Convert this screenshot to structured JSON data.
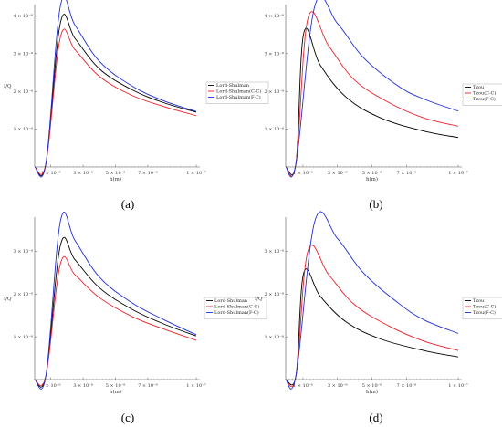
{
  "chart_data": [
    {
      "type": "line",
      "caption": "(a)",
      "xlabel": "h(m)",
      "ylabel": "I/Q",
      "xlim": [
        0,
        1e-07
      ],
      "ylim": [
        0,
        4.3e-08
      ],
      "x_ticks": [
        1e-08,
        3e-08,
        5e-08,
        7e-08,
        1e-07
      ],
      "x_tick_labels": [
        "1 × 10⁻⁸",
        "3 × 10⁻⁸",
        "5 × 10⁻⁸",
        "7 × 10⁻⁸",
        "1 × 10⁻⁷"
      ],
      "y_ticks": [
        1e-08,
        2e-08,
        3e-08,
        4e-08
      ],
      "y_tick_labels": [
        "1 × 10⁻⁸",
        "2 × 10⁻⁸",
        "3 × 10⁻⁸",
        "4 × 10⁻⁸"
      ],
      "legend_position": "right",
      "series": [
        {
          "name": "Lord-Shulman",
          "color": "#000000",
          "x": [
            0,
            7e-09,
            1.6e-08,
            2.5e-08,
            4e-08,
            6e-08,
            8e-08,
            1e-07
          ],
          "y": [
            0,
            1e-09,
            3.83e-08,
            3.4e-08,
            2.6e-08,
            2.05e-08,
            1.7e-08,
            1.45e-08
          ]
        },
        {
          "name": "Lord-Shulman(C-C)",
          "color": "#e8212a",
          "x": [
            0,
            7e-09,
            1.6e-08,
            2.5e-08,
            4e-08,
            6e-08,
            8e-08,
            1e-07
          ],
          "y": [
            0,
            1e-09,
            3.45e-08,
            3.1e-08,
            2.4e-08,
            1.9e-08,
            1.6e-08,
            1.36e-08
          ]
        },
        {
          "name": "Lord-Shulman(F-C)",
          "color": "#1f2fd6",
          "x": [
            0,
            7e-09,
            1.6e-08,
            2.5e-08,
            4e-08,
            6e-08,
            8e-08,
            1e-07
          ],
          "y": [
            0,
            1e-09,
            4.28e-08,
            3.75e-08,
            2.8e-08,
            2.15e-08,
            1.75e-08,
            1.47e-08
          ]
        }
      ]
    },
    {
      "type": "line",
      "caption": "(b)",
      "xlabel": "h(m)",
      "ylabel": "",
      "xlim": [
        0,
        1e-07
      ],
      "ylim": [
        0,
        4.3e-08
      ],
      "x_ticks": [
        1e-08,
        3e-08,
        5e-08,
        7e-08,
        1e-07
      ],
      "x_tick_labels": [
        "1 × 10⁻⁸",
        "3 × 10⁻⁸",
        "5 × 10⁻⁸",
        "7 × 10⁻⁸",
        "1 × 10⁻⁷"
      ],
      "y_ticks": [
        1e-08,
        2e-08,
        3e-08,
        4e-08
      ],
      "y_tick_labels": [
        "1 × 10⁻⁸",
        "2 × 10⁻⁸",
        "3 × 10⁻⁸",
        "4 × 10⁻⁸"
      ],
      "legend_position": "right",
      "series": [
        {
          "name": "Tzou",
          "color": "#000000",
          "x": [
            0,
            6e-09,
            1.05e-08,
            2e-08,
            3.5e-08,
            5.5e-08,
            8e-08,
            1e-07
          ],
          "y": [
            0,
            1e-09,
            3.55e-08,
            2.7e-08,
            1.85e-08,
            1.3e-08,
            9.5e-09,
            7.8e-09
          ]
        },
        {
          "name": "Tzou(C-C)",
          "color": "#e8212a",
          "x": [
            0,
            6e-09,
            1.3e-08,
            2.5e-08,
            4e-08,
            6e-08,
            8e-08,
            1e-07
          ],
          "y": [
            0,
            1e-09,
            3.95e-08,
            3.2e-08,
            2.3e-08,
            1.7e-08,
            1.3e-08,
            1.08e-08
          ]
        },
        {
          "name": "Tzou(F-C)",
          "color": "#1f2fd6",
          "x": [
            0,
            6e-09,
            1.7e-08,
            3e-08,
            4.5e-08,
            6.5e-08,
            8e-08,
            1e-07
          ],
          "y": [
            0,
            1e-09,
            4.28e-08,
            3.8e-08,
            2.9e-08,
            2.15e-08,
            1.8e-08,
            1.48e-08
          ]
        }
      ]
    },
    {
      "type": "line",
      "caption": "(c)",
      "xlabel": "h(m)",
      "ylabel": "I/Q",
      "xlim": [
        0,
        1e-07
      ],
      "ylim": [
        0,
        3.8e-08
      ],
      "x_ticks": [
        1e-08,
        3e-08,
        5e-08,
        7e-08,
        1e-07
      ],
      "x_tick_labels": [
        "1 × 10⁻⁸",
        "3 × 10⁻⁸",
        "5 × 10⁻⁸",
        "7 × 10⁻⁸",
        "1 × 10⁻⁷"
      ],
      "y_ticks": [
        1e-08,
        2e-08,
        3e-08
      ],
      "y_tick_labels": [
        "1 × 10⁻⁸",
        "2 × 10⁻⁸",
        "3 × 10⁻⁸"
      ],
      "legend_position": "right",
      "series": [
        {
          "name": "Lord-Shulman",
          "color": "#000000",
          "x": [
            0,
            7e-09,
            1.6e-08,
            2.5e-08,
            4e-08,
            6e-08,
            8e-08,
            1e-07
          ],
          "y": [
            0,
            1e-09,
            3.15e-08,
            2.8e-08,
            2.15e-08,
            1.65e-08,
            1.3e-08,
            1.02e-08
          ]
        },
        {
          "name": "Lord-Shulman(C-C)",
          "color": "#e8212a",
          "x": [
            0,
            7e-09,
            1.6e-08,
            2.5e-08,
            4e-08,
            6e-08,
            8e-08,
            1e-07
          ],
          "y": [
            0,
            1e-09,
            2.72e-08,
            2.45e-08,
            1.92e-08,
            1.48e-08,
            1.18e-08,
            9.2e-09
          ]
        },
        {
          "name": "Lord-Shulman(F-C)",
          "color": "#1f2fd6",
          "x": [
            0,
            7e-09,
            1.6e-08,
            2.5e-08,
            4e-08,
            6e-08,
            8e-08,
            1e-07
          ],
          "y": [
            0,
            1e-09,
            3.72e-08,
            3.25e-08,
            2.4e-08,
            1.8e-08,
            1.4e-08,
            1.05e-08
          ]
        }
      ]
    },
    {
      "type": "line",
      "caption": "(d)",
      "xlabel": "h(m)",
      "ylabel": "I/Q",
      "xlim": [
        0,
        1e-07
      ],
      "ylim": [
        0,
        3.8e-08
      ],
      "x_ticks": [
        1e-08,
        3e-08,
        5e-08,
        7e-08,
        1e-07
      ],
      "x_tick_labels": [
        "1 × 10⁻⁸",
        "3 × 10⁻⁸",
        "5 × 10⁻⁸",
        "7 × 10⁻⁸",
        "1 × 10⁻⁷"
      ],
      "y_ticks": [
        1e-08,
        2e-08,
        3e-08
      ],
      "y_tick_labels": [
        "1 × 10⁻⁸",
        "2 × 10⁻⁸",
        "3 × 10⁻⁸"
      ],
      "legend_position": "right",
      "series": [
        {
          "name": "Tzou",
          "color": "#000000",
          "x": [
            0,
            6e-09,
            1.05e-08,
            2e-08,
            3.5e-08,
            5.5e-08,
            8e-08,
            1e-07
          ],
          "y": [
            0,
            1e-09,
            2.5e-08,
            1.95e-08,
            1.35e-08,
            9.5e-09,
            6.8e-09,
            5.3e-09
          ]
        },
        {
          "name": "Tzou(C-C)",
          "color": "#e8212a",
          "x": [
            0,
            6e-09,
            1.3e-08,
            2.5e-08,
            4e-08,
            6e-08,
            8e-08,
            1e-07
          ],
          "y": [
            0,
            1e-09,
            3.02e-08,
            2.45e-08,
            1.75e-08,
            1.25e-08,
            9e-09,
            6.8e-09
          ]
        },
        {
          "name": "Tzou(F-C)",
          "color": "#1f2fd6",
          "x": [
            0,
            6e-09,
            1.7e-08,
            3e-08,
            4.5e-08,
            6.5e-08,
            8e-08,
            1e-07
          ],
          "y": [
            0,
            1e-09,
            3.72e-08,
            3.3e-08,
            2.5e-08,
            1.8e-08,
            1.4e-08,
            1.08e-08
          ]
        }
      ]
    }
  ]
}
